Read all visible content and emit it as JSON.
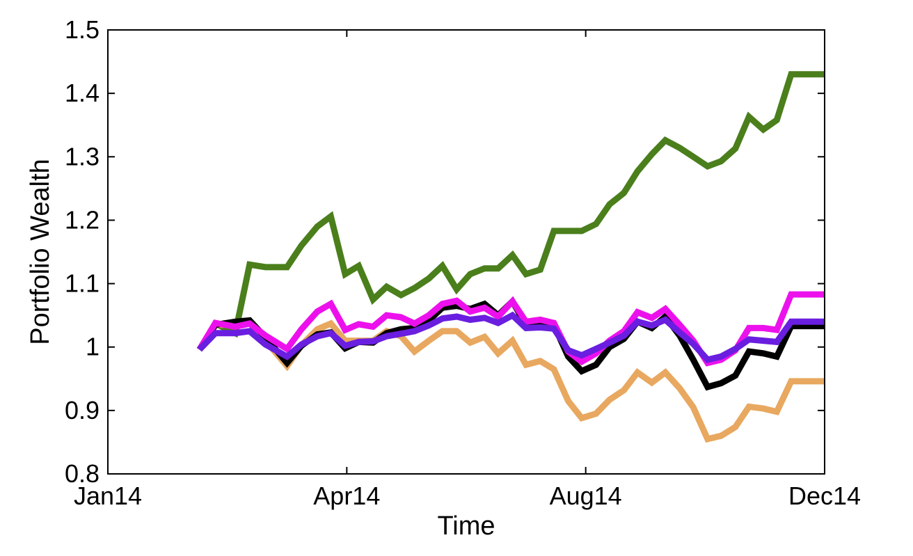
{
  "chart_data": {
    "type": "line",
    "title": "",
    "xlabel": "Time",
    "ylabel": "Portfolio Wealth",
    "xlim": [
      "2014-01",
      "2014-12"
    ],
    "ylim": [
      0.8,
      1.5
    ],
    "x_ticks": [
      {
        "label": "Jan14",
        "value": 0
      },
      {
        "label": "Apr14",
        "value": 3
      },
      {
        "label": "Aug14",
        "value": 6
      },
      {
        "label": "Dec14",
        "value": 9
      }
    ],
    "y_ticks": [
      "0.8",
      "0.9",
      "1",
      "1.1",
      "1.2",
      "1.3",
      "1.4",
      "1.5"
    ],
    "y_tick_values": [
      0.8,
      0.9,
      1.0,
      1.1,
      1.2,
      1.3,
      1.4,
      1.5
    ],
    "grid": false,
    "x": [
      1.15,
      1.35,
      1.6,
      1.78,
      1.98,
      2.25,
      2.43,
      2.63,
      2.8,
      2.98,
      3.15,
      3.33,
      3.5,
      3.68,
      3.85,
      4.03,
      4.2,
      4.38,
      4.55,
      4.73,
      4.9,
      5.08,
      5.25,
      5.43,
      5.6,
      5.78,
      5.95,
      6.13,
      6.3,
      6.48,
      6.65,
      6.83,
      7.0,
      7.18,
      7.35,
      7.53,
      7.7,
      7.88,
      8.05,
      8.23,
      8.4,
      8.58,
      8.75,
      8.93,
      9.0
    ],
    "series": [
      {
        "color": "#4a7f1c",
        "values": [
          0.996,
          1.037,
          1.022,
          1.13,
          1.126,
          1.126,
          1.16,
          1.19,
          1.206,
          1.115,
          1.128,
          1.075,
          1.095,
          1.082,
          1.093,
          1.108,
          1.128,
          1.091,
          1.115,
          1.124,
          1.124,
          1.145,
          1.115,
          1.122,
          1.183,
          1.183,
          1.183,
          1.194,
          1.225,
          1.243,
          1.277,
          1.304,
          1.326,
          1.314,
          1.3,
          1.285,
          1.293,
          1.313,
          1.363,
          1.343,
          1.358,
          1.43,
          1.43,
          1.43,
          1.43
        ]
      },
      {
        "color": "#e8a860",
        "values": [
          0.996,
          1.035,
          1.035,
          1.04,
          1.01,
          0.97,
          1.003,
          1.028,
          1.037,
          1.01,
          1.01,
          1.01,
          1.025,
          1.017,
          0.993,
          1.01,
          1.025,
          1.025,
          1.007,
          1.016,
          0.99,
          1.01,
          0.972,
          0.978,
          0.965,
          0.915,
          0.888,
          0.895,
          0.917,
          0.932,
          0.96,
          0.944,
          0.96,
          0.935,
          0.905,
          0.855,
          0.86,
          0.874,
          0.906,
          0.903,
          0.898,
          0.946,
          0.946,
          0.946,
          0.946
        ]
      },
      {
        "color": "#000000",
        "values": [
          0.996,
          1.035,
          1.04,
          1.042,
          1.015,
          0.975,
          1.002,
          1.02,
          1.023,
          0.998,
          1.008,
          1.007,
          1.022,
          1.028,
          1.03,
          1.042,
          1.062,
          1.065,
          1.06,
          1.068,
          1.05,
          1.072,
          1.035,
          1.037,
          1.035,
          0.985,
          0.962,
          0.972,
          1.0,
          1.013,
          1.04,
          1.03,
          1.048,
          1.018,
          0.98,
          0.937,
          0.943,
          0.955,
          0.993,
          0.99,
          0.985,
          1.033,
          1.033,
          1.033,
          1.033
        ]
      },
      {
        "color": "#ec11ec",
        "values": [
          0.996,
          1.038,
          1.032,
          1.037,
          1.018,
          0.997,
          1.028,
          1.056,
          1.068,
          1.027,
          1.036,
          1.032,
          1.05,
          1.047,
          1.037,
          1.05,
          1.068,
          1.073,
          1.056,
          1.062,
          1.048,
          1.072,
          1.04,
          1.043,
          1.038,
          0.993,
          0.977,
          0.99,
          1.01,
          1.025,
          1.055,
          1.046,
          1.06,
          1.035,
          1.01,
          0.975,
          0.98,
          0.995,
          1.03,
          1.03,
          1.027,
          1.083,
          1.083,
          1.083,
          1.083
        ]
      },
      {
        "color": "#6a1ee0",
        "values": [
          0.996,
          1.022,
          1.022,
          1.025,
          1.004,
          0.985,
          1.004,
          1.017,
          1.022,
          1.002,
          1.008,
          1.009,
          1.017,
          1.021,
          1.025,
          1.034,
          1.045,
          1.048,
          1.043,
          1.046,
          1.038,
          1.05,
          1.03,
          1.031,
          1.029,
          0.995,
          0.987,
          0.997,
          1.007,
          1.018,
          1.04,
          1.034,
          1.043,
          1.023,
          1.005,
          0.98,
          0.985,
          0.997,
          1.012,
          1.01,
          1.008,
          1.04,
          1.04,
          1.04,
          1.04
        ]
      }
    ]
  }
}
